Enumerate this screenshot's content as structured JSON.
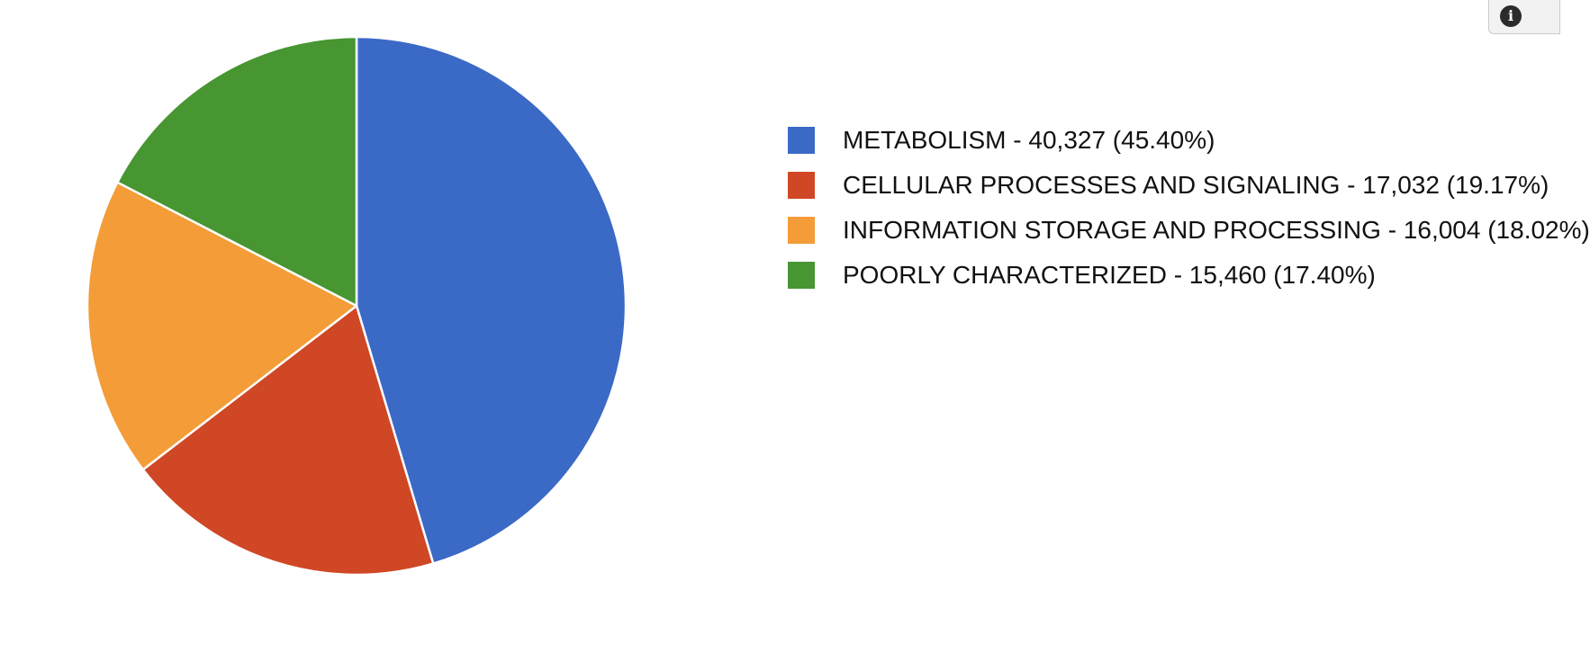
{
  "info_icon_glyph": "i",
  "chart_data": {
    "type": "pie",
    "slices": [
      {
        "name": "METABOLISM",
        "value": 40327,
        "percent": 45.4,
        "color": "#3b69c6",
        "label": "METABOLISM - 40,327 (45.40%)"
      },
      {
        "name": "CELLULAR PROCESSES AND SIGNALING",
        "value": 17032,
        "percent": 19.17,
        "color": "#cf4724",
        "label": "CELLULAR PROCESSES AND SIGNALING - 17,032 (19.17%)"
      },
      {
        "name": "INFORMATION STORAGE AND PROCESSING",
        "value": 16004,
        "percent": 18.02,
        "color": "#f39c38",
        "label": "INFORMATION STORAGE AND PROCESSING - 16,004 (18.02%)"
      },
      {
        "name": "POORLY CHARACTERIZED",
        "value": 15460,
        "percent": 17.4,
        "color": "#479632",
        "label": "POORLY CHARACTERIZED - 15,460 (17.40%)"
      }
    ],
    "legend_position": "right",
    "start_angle": "top",
    "direction": "clockwise"
  }
}
